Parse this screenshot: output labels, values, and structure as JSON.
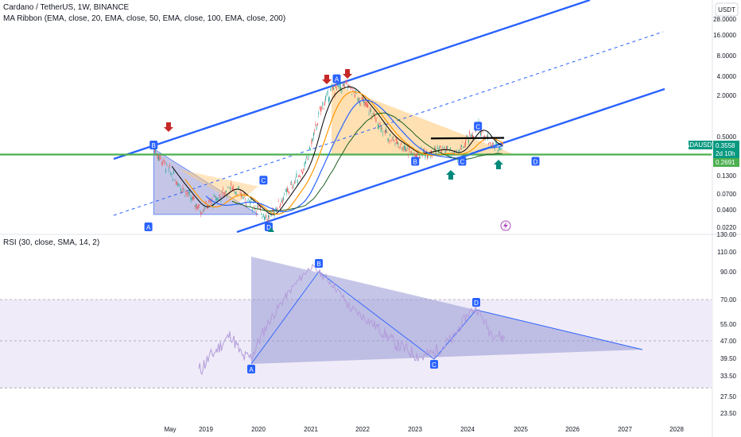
{
  "header": {
    "symbol_line": "Cardano / TetherUS, 1W, BINANCE",
    "ma_line": "MA Ribbon (EMA, close, 20, EMA, close, 50, EMA, close, 100, EMA, close, 200)",
    "rsi_line": "RSI (30, close, SMA, 14, 2)",
    "currency_badge": "USDT"
  },
  "colors": {
    "channel": "#2962ff",
    "support": "#4caf50",
    "triangle_fill": "#9598d4",
    "orange_fill": "#ffcc80",
    "rsi_line": "#b39ddb",
    "rsi_band": "#7e57c2",
    "bull_candle": "#26a69a",
    "bear_candle": "#ef5350",
    "arrow_red": "#c62828",
    "arrow_green": "#00897b",
    "ema20": "#000000",
    "ema50": "#ff9800",
    "ema100": "#2962ff",
    "ema200": "#1b5e20"
  },
  "chart_data": [
    {
      "type": "candlestick",
      "scale": "log",
      "price_axis": [
        "28.0000",
        "16.0000",
        "8.0000",
        "4.0000",
        "2.0000",
        "0.5000",
        "0.1300",
        "0.0700",
        "0.0400",
        "0.0220"
      ],
      "time_axis": [
        "May",
        "2019",
        "2020",
        "2021",
        "2022",
        "2023",
        "2024",
        "2025",
        "2026",
        "2027",
        "2028"
      ],
      "price_tags": [
        {
          "label": "ADAUSDT",
          "value": "0.3558",
          "sub": "2d 10h",
          "color": "#089981"
        },
        {
          "value": "0.2691",
          "color": "#4caf50"
        }
      ],
      "pattern_labels": [
        "A",
        "B",
        "C",
        "D",
        "A",
        "C",
        "B",
        "C",
        "D"
      ],
      "series": [
        {
          "name": "EMA 20"
        },
        {
          "name": "EMA 50"
        },
        {
          "name": "EMA 100"
        },
        {
          "name": "EMA 200"
        }
      ]
    },
    {
      "type": "line",
      "price_axis": [
        "130.00",
        "110.00",
        "90.00",
        "70.00",
        "55.00",
        "47.00",
        "39.50",
        "33.50",
        "27.50",
        "23.50"
      ],
      "band_levels": [
        "70.00",
        "30.00"
      ],
      "pattern_labels": [
        "A",
        "B",
        "C",
        "D"
      ]
    }
  ]
}
